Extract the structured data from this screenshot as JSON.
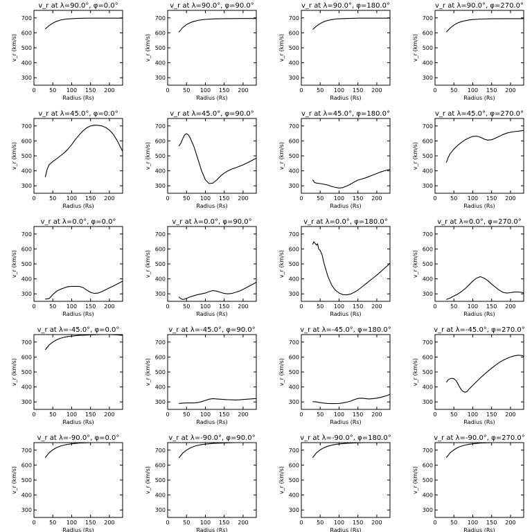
{
  "figure": {
    "xlabel": "Radius (Rs)",
    "ylabel": "v_r (km/s)",
    "xticks": [
      0,
      50,
      100,
      150,
      200
    ],
    "yticks": [
      300,
      400,
      500,
      600,
      700
    ],
    "xlim": [
      0,
      235
    ],
    "ylim": [
      250,
      750
    ]
  },
  "chart_data": [
    {
      "type": "line",
      "title": "v_r at λ=90.0°, φ=0.0°",
      "xlabel": "Radius (Rs)",
      "ylabel": "v_r (km/s)",
      "xlim": [
        0,
        235
      ],
      "ylim": [
        250,
        750
      ],
      "x": [
        30,
        40,
        50,
        60,
        70,
        80,
        90,
        100,
        120,
        150,
        200,
        235
      ],
      "y": [
        625,
        648,
        665,
        677,
        685,
        690,
        693,
        695,
        697,
        698,
        698,
        698
      ]
    },
    {
      "type": "line",
      "title": "v_r at λ=90.0°, φ=90.0°",
      "xlabel": "Radius (Rs)",
      "ylabel": "v_r (km/s)",
      "xlim": [
        0,
        235
      ],
      "ylim": [
        250,
        750
      ],
      "x": [
        30,
        40,
        50,
        60,
        70,
        80,
        90,
        100,
        120,
        150,
        200,
        235
      ],
      "y": [
        605,
        635,
        655,
        668,
        677,
        683,
        687,
        690,
        693,
        695,
        696,
        696
      ]
    },
    {
      "type": "line",
      "title": "v_r at λ=90.0°, φ=180.0°",
      "xlabel": "Radius (Rs)",
      "ylabel": "v_r (km/s)",
      "xlim": [
        0,
        235
      ],
      "ylim": [
        250,
        750
      ],
      "x": [
        30,
        40,
        50,
        60,
        70,
        80,
        90,
        100,
        120,
        150,
        200,
        235
      ],
      "y": [
        622,
        645,
        662,
        675,
        683,
        688,
        692,
        694,
        696,
        698,
        698,
        698
      ]
    },
    {
      "type": "line",
      "title": "v_r at λ=90.0°, φ=270.0°",
      "xlabel": "Radius (Rs)",
      "ylabel": "v_r (km/s)",
      "xlim": [
        0,
        235
      ],
      "ylim": [
        250,
        750
      ],
      "x": [
        30,
        40,
        50,
        60,
        70,
        80,
        90,
        100,
        120,
        150,
        200,
        235
      ],
      "y": [
        605,
        632,
        652,
        666,
        675,
        681,
        686,
        689,
        692,
        694,
        695,
        695
      ]
    },
    {
      "type": "line",
      "title": "v_r at λ=45.0°, φ=0.0°",
      "xlabel": "Radius (Rs)",
      "ylabel": "v_r (km/s)",
      "xlim": [
        0,
        235
      ],
      "ylim": [
        250,
        750
      ],
      "x": [
        30,
        35,
        40,
        50,
        60,
        70,
        80,
        90,
        100,
        110,
        120,
        130,
        140,
        150,
        160,
        170,
        180,
        190,
        200,
        210,
        220,
        230,
        235
      ],
      "y": [
        358,
        410,
        440,
        462,
        480,
        500,
        520,
        545,
        575,
        610,
        640,
        667,
        688,
        700,
        705,
        704,
        700,
        690,
        672,
        645,
        605,
        555,
        530
      ]
    },
    {
      "type": "line",
      "title": "v_r at λ=45.0°, φ=90.0°",
      "xlabel": "Radius (Rs)",
      "ylabel": "v_r (km/s)",
      "xlim": [
        0,
        235
      ],
      "ylim": [
        250,
        750
      ],
      "x": [
        30,
        35,
        40,
        45,
        50,
        55,
        60,
        70,
        80,
        90,
        100,
        110,
        120,
        130,
        140,
        150,
        160,
        170,
        180,
        190,
        200,
        210,
        220,
        230,
        235
      ],
      "y": [
        565,
        585,
        615,
        640,
        648,
        640,
        618,
        560,
        480,
        400,
        340,
        315,
        318,
        338,
        365,
        385,
        400,
        412,
        420,
        430,
        440,
        452,
        465,
        478,
        485
      ]
    },
    {
      "type": "line",
      "title": "v_r at λ=45.0°, φ=180.0°",
      "xlabel": "Radius (Rs)",
      "ylabel": "v_r (km/s)",
      "xlim": [
        0,
        235
      ],
      "ylim": [
        250,
        750
      ],
      "x": [
        30,
        35,
        40,
        50,
        60,
        70,
        80,
        90,
        100,
        110,
        120,
        130,
        140,
        150,
        160,
        170,
        180,
        190,
        200,
        210,
        220,
        230,
        235
      ],
      "y": [
        340,
        322,
        318,
        315,
        310,
        305,
        296,
        290,
        285,
        288,
        298,
        310,
        325,
        338,
        345,
        353,
        362,
        372,
        382,
        392,
        400,
        407,
        410
      ]
    },
    {
      "type": "line",
      "title": "v_r at λ=45.0°, φ=270.0°",
      "xlabel": "Radius (Rs)",
      "ylabel": "v_r (km/s)",
      "xlim": [
        0,
        235
      ],
      "ylim": [
        250,
        750
      ],
      "x": [
        30,
        35,
        40,
        50,
        60,
        70,
        80,
        90,
        100,
        110,
        120,
        130,
        140,
        150,
        160,
        170,
        180,
        190,
        200,
        210,
        220,
        230,
        235
      ],
      "y": [
        455,
        490,
        515,
        545,
        570,
        590,
        608,
        620,
        630,
        632,
        625,
        612,
        605,
        608,
        618,
        630,
        642,
        652,
        658,
        662,
        665,
        668,
        670
      ]
    },
    {
      "type": "line",
      "title": "v_r at λ=0.0°, φ=0.0°",
      "xlabel": "Radius (Rs)",
      "ylabel": "v_r (km/s)",
      "xlim": [
        0,
        235
      ],
      "ylim": [
        250,
        750
      ],
      "x": [
        30,
        40,
        50,
        60,
        70,
        80,
        90,
        100,
        110,
        120,
        130,
        140,
        150,
        160,
        170,
        180,
        190,
        200,
        210,
        220,
        230,
        235
      ],
      "y": [
        265,
        268,
        295,
        318,
        330,
        340,
        348,
        350,
        350,
        350,
        342,
        325,
        310,
        303,
        305,
        315,
        328,
        340,
        352,
        365,
        378,
        385
      ]
    },
    {
      "type": "line",
      "title": "v_r at λ=0.0°, φ=90.0°",
      "xlabel": "Radius (Rs)",
      "ylabel": "v_r (km/s)",
      "xlim": [
        0,
        235
      ],
      "ylim": [
        250,
        750
      ],
      "x": [
        30,
        35,
        40,
        45,
        50,
        60,
        70,
        80,
        90,
        100,
        110,
        120,
        130,
        140,
        150,
        160,
        170,
        180,
        190,
        200,
        210,
        220,
        230,
        235
      ],
      "y": [
        280,
        268,
        262,
        265,
        270,
        280,
        288,
        295,
        300,
        305,
        315,
        322,
        318,
        310,
        303,
        300,
        303,
        310,
        318,
        330,
        343,
        357,
        370,
        378
      ]
    },
    {
      "type": "line",
      "title": "v_r at λ=0.0°, φ=180.0°",
      "xlabel": "Radius (Rs)",
      "ylabel": "v_r (km/s)",
      "xlim": [
        0,
        235
      ],
      "ylim": [
        250,
        750
      ],
      "x": [
        30,
        33,
        36,
        40,
        43,
        46,
        50,
        55,
        60,
        70,
        80,
        90,
        100,
        110,
        120,
        130,
        140,
        150,
        160,
        170,
        180,
        190,
        200,
        210,
        220,
        230,
        235
      ],
      "y": [
        630,
        648,
        640,
        625,
        635,
        600,
        590,
        560,
        505,
        420,
        360,
        325,
        305,
        295,
        293,
        298,
        310,
        325,
        345,
        365,
        385,
        405,
        425,
        447,
        470,
        492,
        505
      ]
    },
    {
      "type": "line",
      "title": "v_r at λ=0.0°, φ=270.0°",
      "xlabel": "Radius (Rs)",
      "ylabel": "v_r (km/s)",
      "xlim": [
        0,
        235
      ],
      "ylim": [
        250,
        750
      ],
      "x": [
        30,
        40,
        50,
        60,
        70,
        80,
        90,
        100,
        110,
        120,
        130,
        140,
        150,
        160,
        170,
        180,
        190,
        200,
        210,
        220,
        230,
        235
      ],
      "y": [
        262,
        272,
        285,
        298,
        315,
        335,
        360,
        385,
        405,
        415,
        405,
        388,
        365,
        345,
        325,
        310,
        305,
        308,
        312,
        312,
        310,
        305
      ]
    },
    {
      "type": "line",
      "title": "v_r at λ=-45.0°, φ=0.0°",
      "xlabel": "Radius (Rs)",
      "ylabel": "v_r (km/s)",
      "xlim": [
        0,
        235
      ],
      "ylim": [
        250,
        750
      ],
      "x": [
        30,
        40,
        50,
        60,
        70,
        80,
        90,
        100,
        120,
        150,
        180,
        200,
        220,
        235
      ],
      "y": [
        648,
        680,
        700,
        715,
        725,
        732,
        737,
        740,
        745,
        748,
        750,
        750,
        748,
        745
      ]
    },
    {
      "type": "line",
      "title": "v_r at λ=-45.0°, φ=90.0°",
      "xlabel": "Radius (Rs)",
      "ylabel": "v_r (km/s)",
      "xlim": [
        0,
        235
      ],
      "ylim": [
        250,
        750
      ],
      "x": [
        30,
        40,
        50,
        60,
        70,
        80,
        90,
        100,
        110,
        120,
        130,
        140,
        150,
        160,
        170,
        180,
        190,
        200,
        210,
        220,
        230,
        235
      ],
      "y": [
        290,
        292,
        293,
        293,
        293,
        296,
        302,
        310,
        318,
        322,
        320,
        318,
        316,
        315,
        314,
        313,
        314,
        316,
        318,
        320,
        322,
        322
      ]
    },
    {
      "type": "line",
      "title": "v_r at λ=-45.0°, φ=180.0°",
      "xlabel": "Radius (Rs)",
      "ylabel": "v_r (km/s)",
      "xlim": [
        0,
        235
      ],
      "ylim": [
        250,
        750
      ],
      "x": [
        30,
        40,
        50,
        60,
        70,
        80,
        90,
        100,
        110,
        120,
        130,
        140,
        150,
        160,
        170,
        180,
        190,
        200,
        210,
        220,
        230,
        235
      ],
      "y": [
        302,
        300,
        295,
        292,
        290,
        289,
        289,
        290,
        293,
        298,
        305,
        315,
        323,
        325,
        322,
        320,
        322,
        325,
        330,
        337,
        345,
        352
      ]
    },
    {
      "type": "line",
      "title": "v_r at λ=-45.0°, φ=270.0°",
      "xlabel": "Radius (Rs)",
      "ylabel": "v_r (km/s)",
      "xlim": [
        0,
        235
      ],
      "ylim": [
        250,
        750
      ],
      "x": [
        30,
        35,
        40,
        45,
        50,
        55,
        60,
        65,
        70,
        75,
        80,
        85,
        90,
        100,
        110,
        120,
        130,
        140,
        150,
        160,
        170,
        180,
        190,
        200,
        210,
        220,
        230,
        235
      ],
      "y": [
        430,
        448,
        455,
        458,
        455,
        445,
        425,
        400,
        380,
        368,
        365,
        370,
        385,
        410,
        435,
        460,
        483,
        505,
        525,
        545,
        563,
        578,
        590,
        600,
        608,
        612,
        610,
        605
      ]
    },
    {
      "type": "line",
      "title": "v_r at λ=-90.0°, φ=0.0°",
      "xlabel": "Radius (Rs)",
      "ylabel": "v_r (km/s)",
      "xlim": [
        0,
        235
      ],
      "ylim": [
        250,
        750
      ],
      "x": [
        30,
        40,
        50,
        60,
        70,
        80,
        90,
        100,
        120,
        150,
        180,
        200,
        220,
        235
      ],
      "y": [
        650,
        682,
        702,
        717,
        727,
        734,
        739,
        742,
        747,
        750,
        752,
        752,
        752,
        752
      ]
    },
    {
      "type": "line",
      "title": "v_r at λ=-90.0°, φ=90.0°",
      "xlabel": "Radius (Rs)",
      "ylabel": "v_r (km/s)",
      "xlim": [
        0,
        235
      ],
      "ylim": [
        250,
        750
      ],
      "x": [
        30,
        40,
        50,
        60,
        70,
        80,
        90,
        100,
        120,
        150,
        180,
        200,
        220,
        235
      ],
      "y": [
        648,
        680,
        700,
        715,
        725,
        732,
        737,
        740,
        745,
        748,
        750,
        750,
        750,
        750
      ]
    },
    {
      "type": "line",
      "title": "v_r at λ=-90.0°, φ=180.0°",
      "xlabel": "Radius (Rs)",
      "ylabel": "v_r (km/s)",
      "xlim": [
        0,
        235
      ],
      "ylim": [
        250,
        750
      ],
      "x": [
        30,
        40,
        50,
        60,
        70,
        80,
        90,
        100,
        120,
        150,
        180,
        200,
        220,
        235
      ],
      "y": [
        650,
        682,
        702,
        716,
        726,
        733,
        738,
        741,
        746,
        749,
        751,
        751,
        751,
        751
      ]
    },
    {
      "type": "line",
      "title": "v_r at λ=-90.0°, φ=270.0°",
      "xlabel": "Radius (Rs)",
      "ylabel": "v_r (km/s)",
      "xlim": [
        0,
        235
      ],
      "ylim": [
        250,
        750
      ],
      "x": [
        30,
        40,
        50,
        60,
        70,
        80,
        90,
        100,
        120,
        150,
        180,
        200,
        220,
        235
      ],
      "y": [
        650,
        682,
        702,
        717,
        727,
        734,
        739,
        742,
        747,
        750,
        751,
        751,
        751,
        751
      ]
    }
  ]
}
